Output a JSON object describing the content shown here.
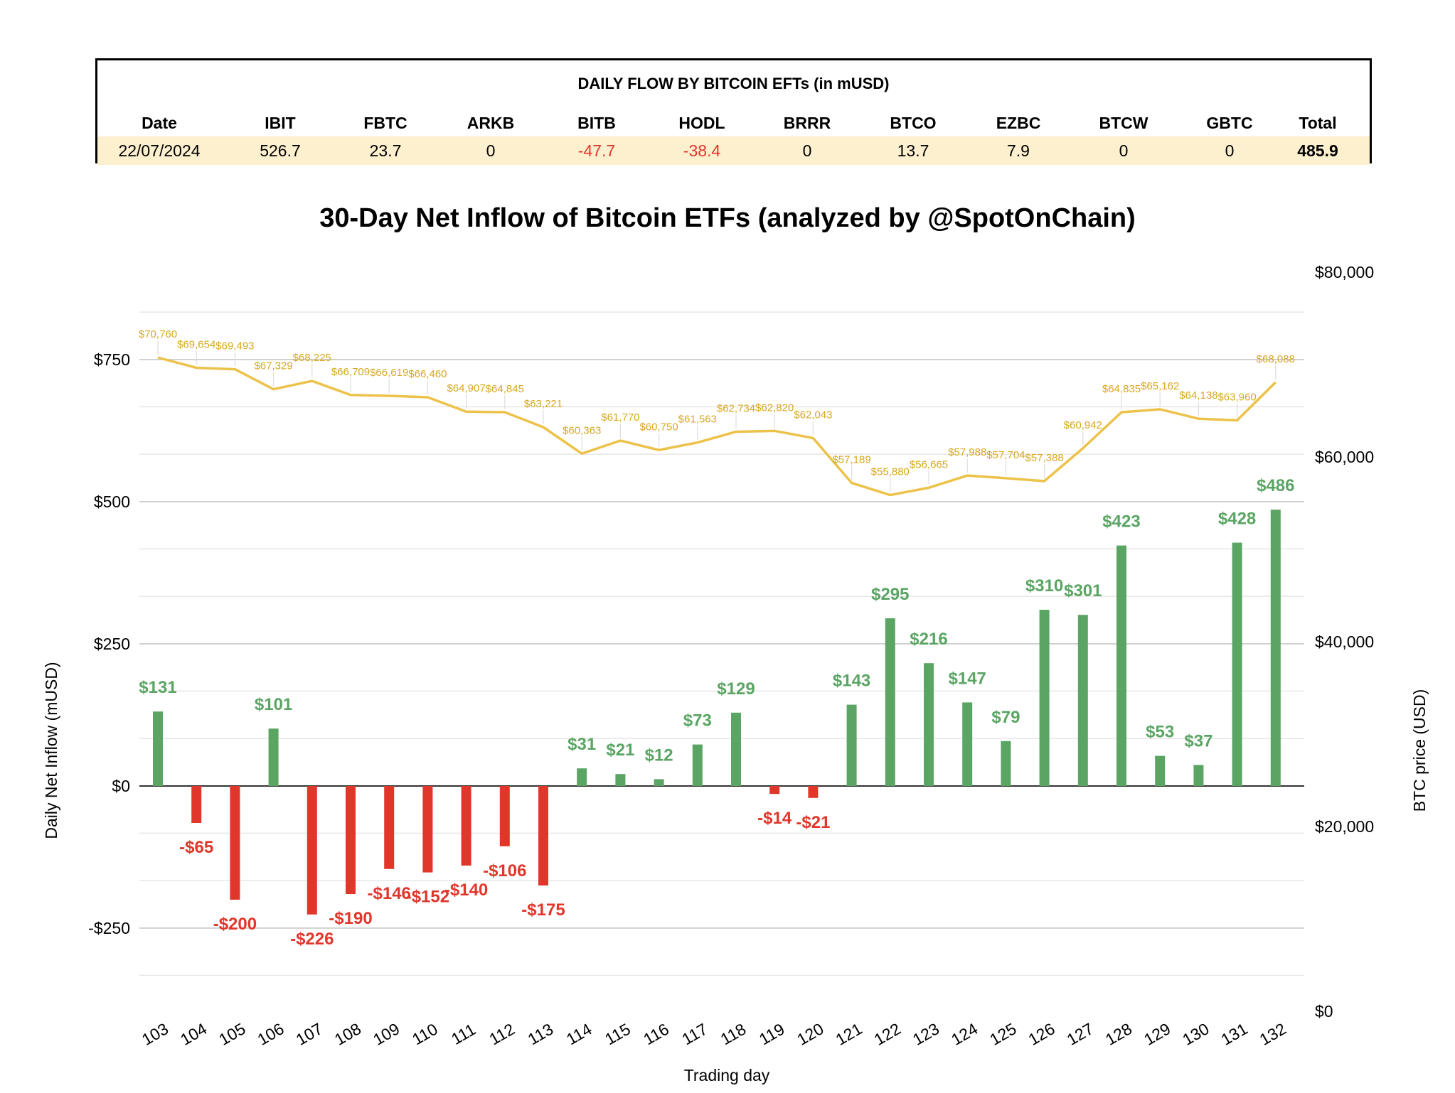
{
  "table": {
    "title": "DAILY FLOW BY BITCOIN EFTs (in mUSD)",
    "columns": [
      "Date",
      "IBIT",
      "FBTC",
      "ARKB",
      "BITB",
      "HODL",
      "BRRR",
      "BTCO",
      "EZBC",
      "BTCW",
      "GBTC",
      "Total"
    ],
    "row": [
      "22/07/2024",
      "526.7",
      "23.7",
      "0",
      "-47.7",
      "-38.4",
      "0",
      "13.7",
      "7.9",
      "0",
      "0",
      "485.9"
    ]
  },
  "colors": {
    "positive": "#5aa564",
    "negative": "#e1362a",
    "price_line": "#ecc24a",
    "grid": "#d9d9d9",
    "row_highlight": "#fdf0cf"
  },
  "chart_data": {
    "type": "bar",
    "title": "30-Day Net Inflow of Bitcoin ETFs (analyzed by @SpotOnChain)",
    "xlabel": "Trading day",
    "ylabel": "Daily Net Inflow (mUSD)",
    "y2label": "BTC price (USD)",
    "ylim": [
      -340,
      900
    ],
    "y2lim": [
      0,
      80000
    ],
    "yticks": [
      -250,
      0,
      250,
      500,
      750
    ],
    "ytick_labels": [
      "-$250",
      "$0",
      "$250",
      "$500",
      "$750"
    ],
    "y2ticks": [
      0,
      20000,
      40000,
      60000,
      80000
    ],
    "y2tick_labels": [
      "$0",
      "$20,000",
      "$40,000",
      "$60,000",
      "$80,000"
    ],
    "grid": true,
    "categories": [
      "103",
      "104",
      "105",
      "106",
      "107",
      "108",
      "109",
      "110",
      "111",
      "112",
      "113",
      "114",
      "115",
      "116",
      "117",
      "118",
      "119",
      "120",
      "121",
      "122",
      "123",
      "124",
      "125",
      "126",
      "127",
      "128",
      "129",
      "130",
      "131",
      "132"
    ],
    "series": [
      {
        "type": "bar",
        "values": [
          131,
          -65,
          -200,
          101,
          -226,
          -190,
          -146,
          -152,
          -140,
          -106,
          -175,
          31,
          21,
          12,
          73,
          129,
          -14,
          -21,
          143,
          295,
          216,
          147,
          79,
          310,
          301,
          423,
          53,
          37,
          428,
          486
        ],
        "labels": [
          "$131",
          "-$65",
          "-$200",
          "$101",
          "-$226",
          "-$190",
          "-$146",
          "-$152",
          "-$140",
          "-$106",
          "-$175",
          "$31",
          "$21",
          "$12",
          "$73",
          "$129",
          "-$14",
          "-$21",
          "$143",
          "$295",
          "$216",
          "$147",
          "$79",
          "$310",
          "$301",
          "$423",
          "$53",
          "$37",
          "$428",
          "$486"
        ]
      },
      {
        "type": "line",
        "axis": "right",
        "values": [
          70760,
          69654,
          69493,
          67329,
          68225,
          66709,
          66619,
          66460,
          64907,
          64845,
          63221,
          60363,
          61770,
          60750,
          61563,
          62734,
          62820,
          62043,
          57189,
          55880,
          56665,
          57988,
          57704,
          57388,
          60942,
          64835,
          65162,
          64138,
          63960,
          68088
        ],
        "labels": [
          "$70,760",
          "$69,654",
          "$69,493",
          "$67,329",
          "$68,225",
          "$66,709",
          "$66,619",
          "$66,460",
          "$64,907",
          "$64,845",
          "$63,221",
          "$60,363",
          "$61,770",
          "$60,750",
          "$61,563",
          "$62,734",
          "$62,820",
          "$62,043",
          "$57,189",
          "$55,880",
          "$56,665",
          "$57,988",
          "$57,704",
          "$57,388",
          "$60,942",
          "$64,835",
          "$65,162",
          "$64,138",
          "$63,960",
          "$68,088"
        ]
      }
    ]
  }
}
